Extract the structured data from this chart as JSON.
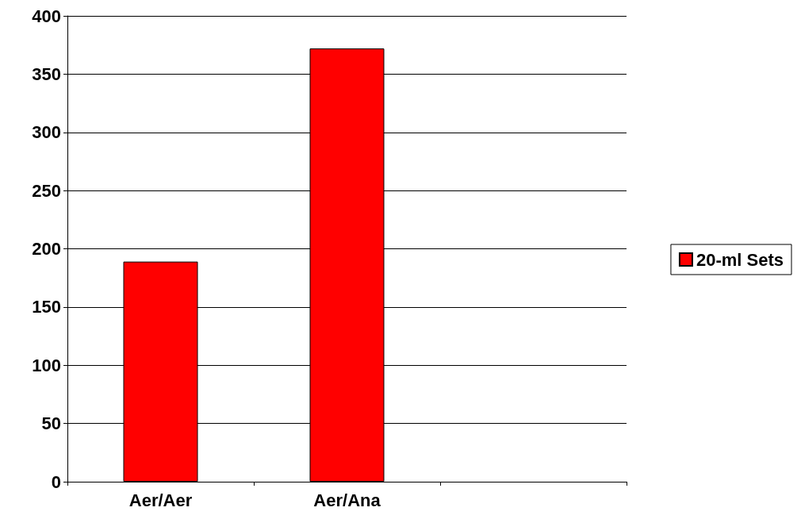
{
  "chart_data": {
    "type": "bar",
    "categories": [
      "Aer/Aer",
      "Aer/Ana",
      null
    ],
    "series": [
      {
        "name": "20-ml Sets",
        "color": "#ff0000",
        "values": [
          189,
          372,
          null
        ]
      }
    ],
    "ylim": [
      0,
      400
    ],
    "yticks": [
      0,
      50,
      100,
      150,
      200,
      250,
      300,
      350,
      400
    ],
    "grid": "y",
    "legend": "right"
  }
}
